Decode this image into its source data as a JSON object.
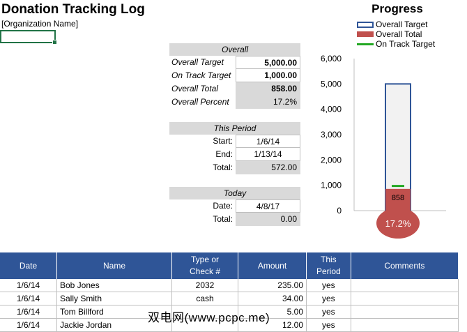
{
  "header": {
    "title": "Donation Tracking Log",
    "org_name": "[Organization Name]"
  },
  "overall": {
    "heading": "Overall",
    "rows": [
      {
        "label": "Overall Target",
        "value": "5,000.00"
      },
      {
        "label": "On Track Target",
        "value": "1,000.00"
      },
      {
        "label": "Overall Total",
        "value": "858.00"
      },
      {
        "label": "Overall Percent",
        "value": "17.2%"
      }
    ]
  },
  "period": {
    "heading": "This Period",
    "rows": [
      {
        "label": "Start:",
        "value": "1/6/14"
      },
      {
        "label": "End:",
        "value": "1/13/14"
      },
      {
        "label": "Total:",
        "value": "572.00"
      }
    ]
  },
  "today": {
    "heading": "Today",
    "rows": [
      {
        "label": "Date:",
        "value": "4/8/17"
      },
      {
        "label": "Total:",
        "value": "0.00"
      }
    ]
  },
  "chart_data": {
    "type": "bar",
    "title": "Progress",
    "legend": [
      "Overall Target",
      "Overall Total",
      "On Track Target"
    ],
    "legend_position": "top-right",
    "ylim": [
      0,
      6000
    ],
    "yticks": [
      "6,000",
      "5,000",
      "4,000",
      "3,000",
      "2,000",
      "1,000",
      "0"
    ],
    "series": [
      {
        "name": "Overall Target",
        "values": [
          5000
        ]
      },
      {
        "name": "Overall Total",
        "values": [
          858
        ]
      },
      {
        "name": "On Track Target",
        "values": [
          1000
        ]
      }
    ],
    "bar_label": "858",
    "bulb_label": "17.2%",
    "colors": {
      "target": "#2f5597",
      "total": "#c0504d",
      "track": "#22a822"
    }
  },
  "log": {
    "columns": [
      "Date",
      "Name",
      "Type or Check #",
      "Amount",
      "This Period",
      "Comments"
    ],
    "rows": [
      [
        "1/6/14",
        "Bob Jones",
        "2032",
        "235.00",
        "yes",
        ""
      ],
      [
        "1/6/14",
        "Sally Smith",
        "cash",
        "34.00",
        "yes",
        ""
      ],
      [
        "1/6/14",
        "Tom Billford",
        "",
        "5.00",
        "yes",
        ""
      ],
      [
        "1/6/14",
        "Jackie Jordan",
        "",
        "12.00",
        "yes",
        ""
      ]
    ]
  },
  "watermark": "双电网(www.pcpc.me)"
}
